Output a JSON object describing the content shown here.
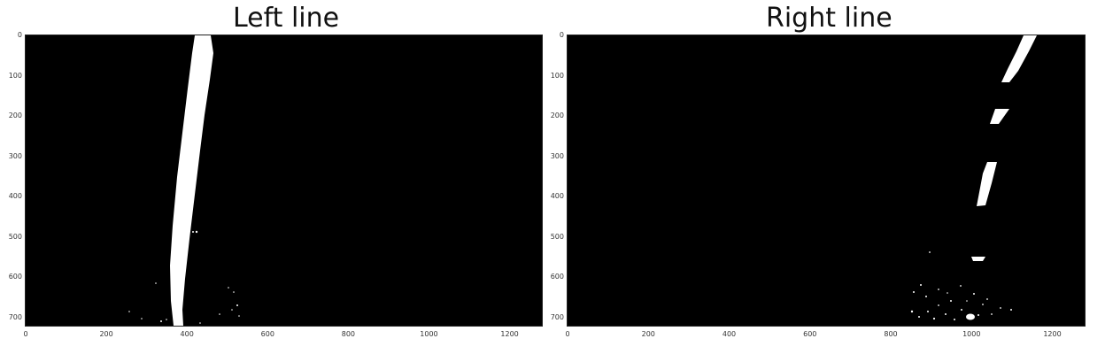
{
  "panels": [
    {
      "id": "left",
      "title": "Left line",
      "yticks": [
        "0",
        "100",
        "200",
        "300",
        "400",
        "500",
        "600",
        "700"
      ],
      "xticks": [
        "0",
        "200",
        "400",
        "600",
        "800",
        "1000",
        "1200"
      ],
      "image_desc": "binary mask"
    },
    {
      "id": "right",
      "title": "Right line",
      "yticks": [
        "0",
        "100",
        "200",
        "300",
        "400",
        "500",
        "600",
        "700"
      ],
      "xticks": [
        "0",
        "200",
        "400",
        "600",
        "800",
        "1000",
        "1200"
      ],
      "image_desc": "binary mask"
    }
  ],
  "axis_range": {
    "x": [
      0,
      1280
    ],
    "y": [
      0,
      720
    ]
  },
  "colors": {
    "background": "#000000",
    "foreground": "#ffffff"
  }
}
